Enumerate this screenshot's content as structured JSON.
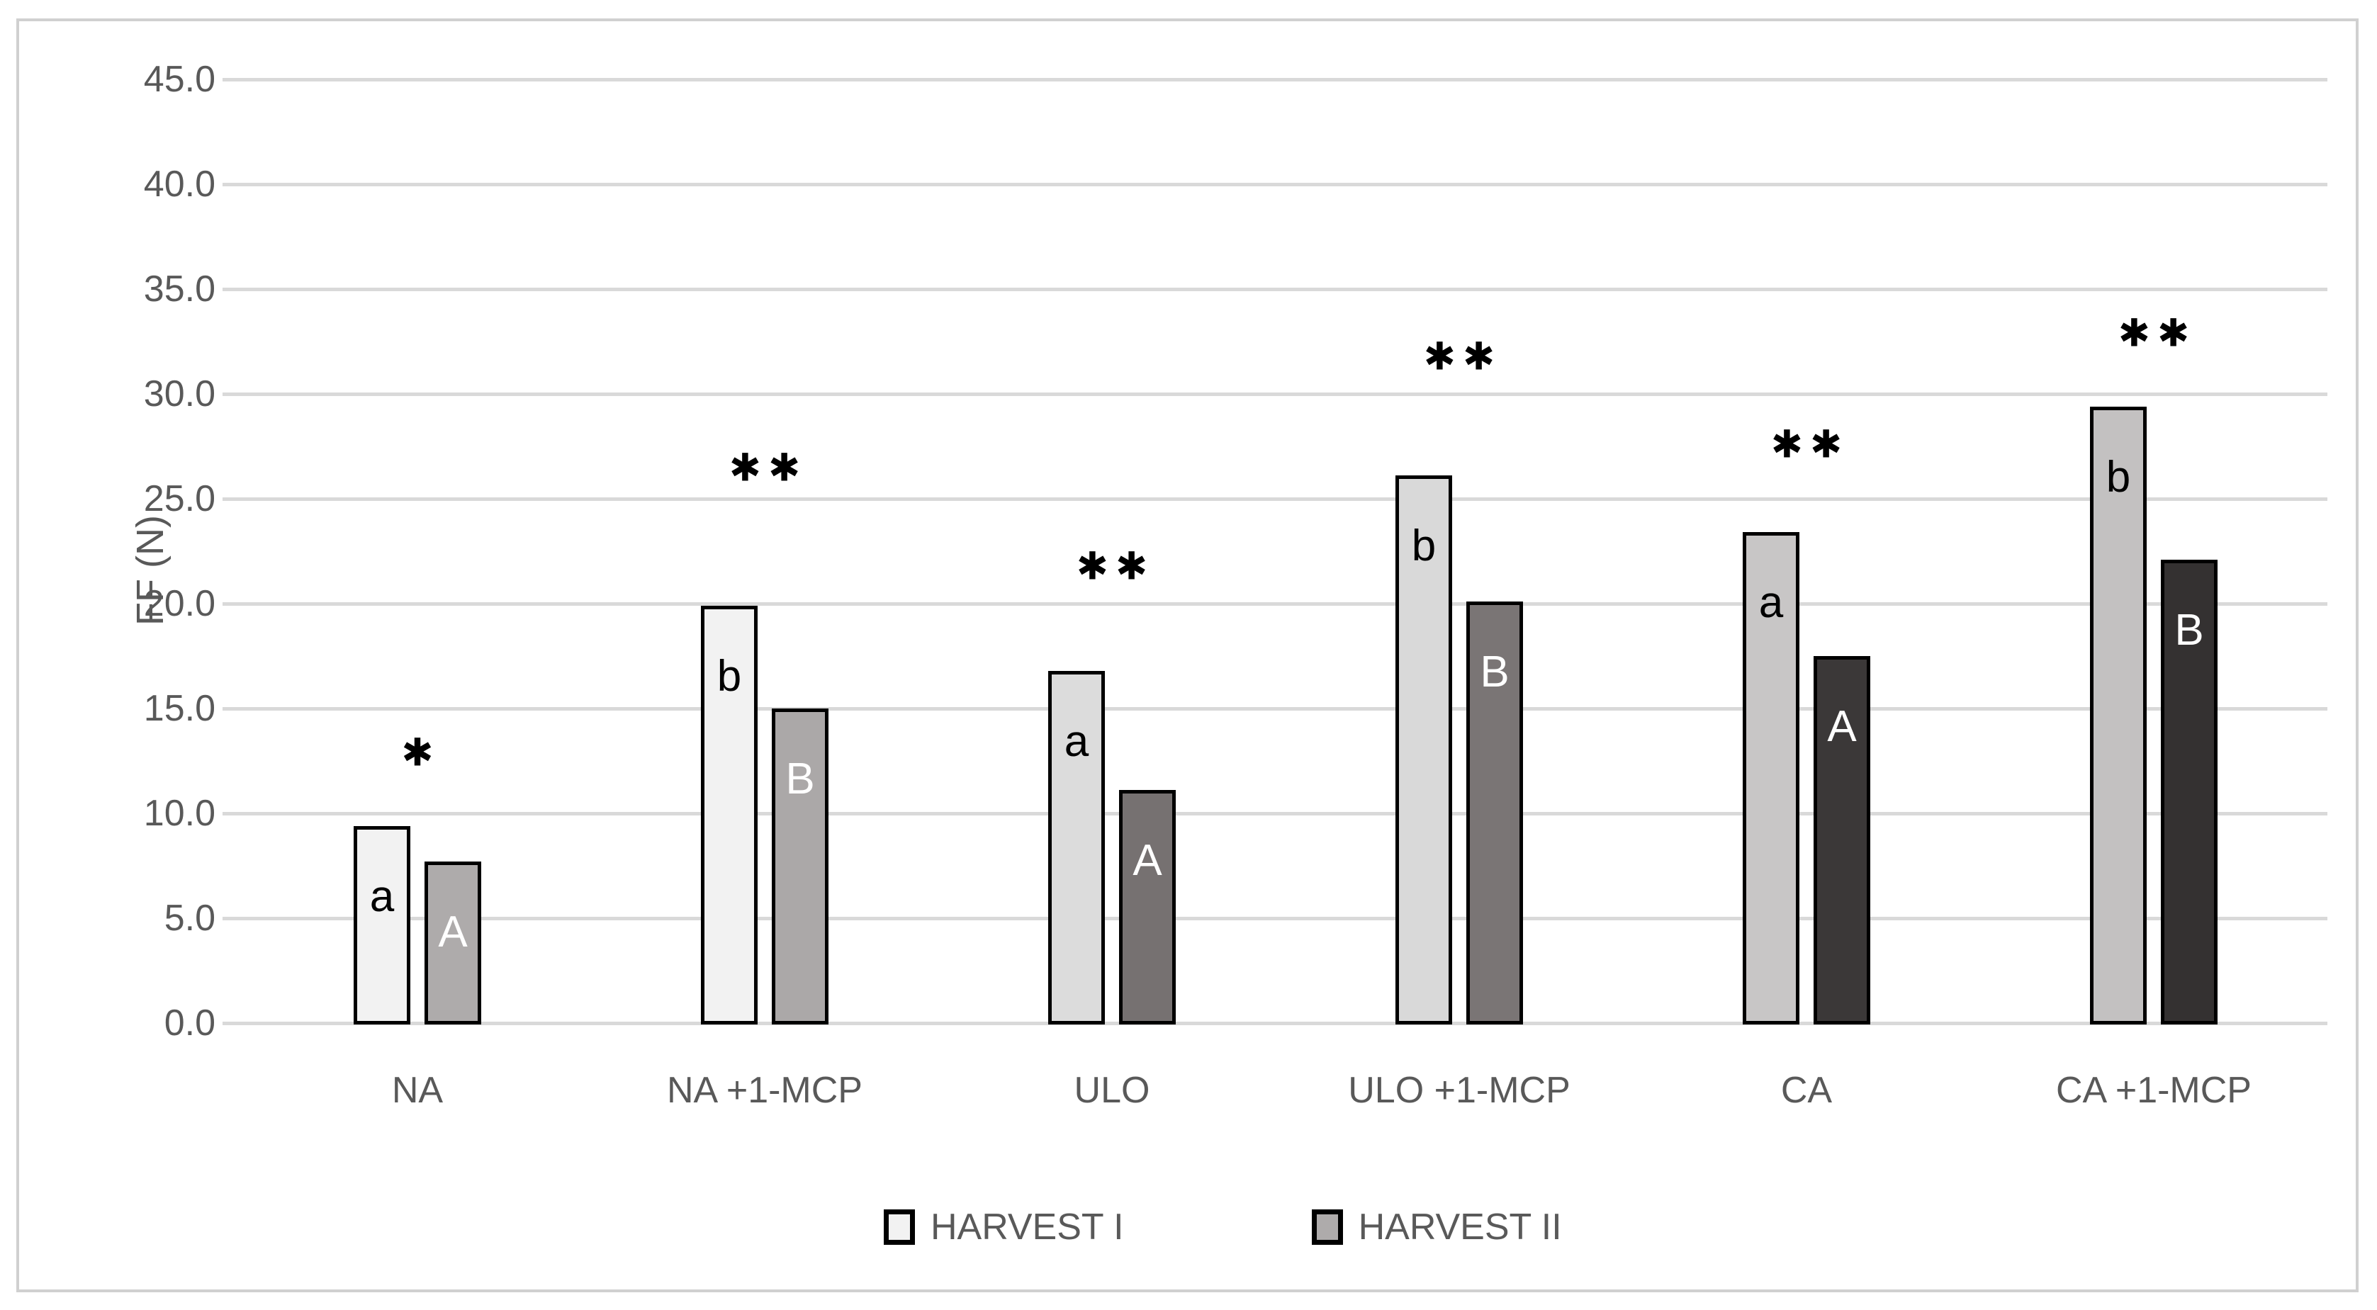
{
  "figure": {
    "background": "#ffffff",
    "frame_border_color": "#d0d0d0"
  },
  "chart_data": {
    "type": "bar",
    "title": "",
    "xlabel": "",
    "ylabel": "FF (N)",
    "ylim": [
      0,
      47.5
    ],
    "grid": true,
    "gridline_color": "#d9d9d9",
    "axis_text_color": "#595959",
    "bar_stroke": "#000000",
    "yticks": [
      0,
      5,
      10,
      15,
      20,
      25,
      30,
      35,
      40,
      45
    ],
    "ytick_labels": [
      "0.0",
      "5.0",
      "10.0",
      "15.0",
      "20.0",
      "25.0",
      "30.0",
      "35.0",
      "40.0",
      "45.0"
    ],
    "categories": [
      "NA",
      "NA +1-MCP",
      "ULO",
      "ULO +1-MCP",
      "CA",
      "CA +1-MCP"
    ],
    "series": [
      {
        "name": "HARVEST I",
        "values": [
          9.4,
          19.9,
          16.8,
          26.1,
          23.4,
          29.4
        ],
        "bar_letters": [
          "a",
          "b",
          "a",
          "b",
          "a",
          "b"
        ],
        "bar_fills": [
          "#f2f2f2",
          "#f2f2f2",
          "#dcdcdc",
          "#d9d9d9",
          "#c8c6c6",
          "#c3c1c1"
        ],
        "letter_color": "#000000",
        "legend_fill": "#f2f2f2"
      },
      {
        "name": "HARVEST II",
        "values": [
          7.7,
          15.0,
          11.1,
          20.1,
          17.5,
          22.1
        ],
        "bar_letters": [
          "A",
          "B",
          "A",
          "B",
          "A",
          "B"
        ],
        "bar_fills": [
          "#aeabab",
          "#aba8a8",
          "#767171",
          "#7a7575",
          "#3b3838",
          "#343131"
        ],
        "letter_color": "#ffffff",
        "legend_fill": "#aeabab"
      }
    ],
    "significance_markers": [
      {
        "category": "NA",
        "symbol": "*",
        "y": 12.9
      },
      {
        "category": "NA +1-MCP",
        "symbol": "**",
        "y": 26.5
      },
      {
        "category": "ULO",
        "symbol": "**",
        "y": 21.8
      },
      {
        "category": "ULO +1-MCP",
        "symbol": "**",
        "y": 31.8
      },
      {
        "category": "CA",
        "symbol": "**",
        "y": 27.6
      },
      {
        "category": "CA +1-MCP",
        "symbol": "**",
        "y": 32.9
      }
    ],
    "legend": {
      "position": "bottom",
      "items": [
        "HARVEST I",
        "HARVEST II"
      ]
    }
  }
}
